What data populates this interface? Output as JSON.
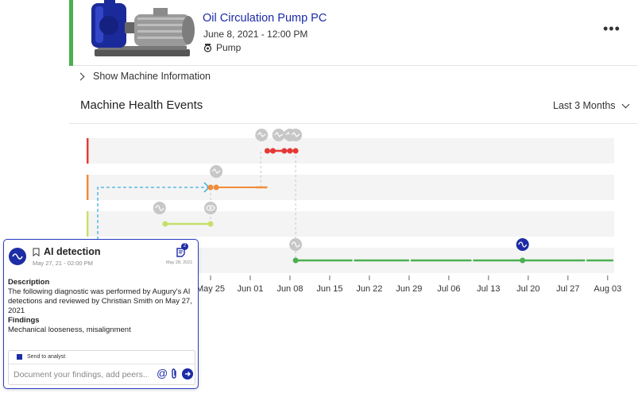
{
  "header": {
    "title": "Oil Circulation Pump PC",
    "date": "June 8, 2021 - 12:00 PM",
    "machine_type": "Pump",
    "type_icon": "pump-icon",
    "more_icon": "more-horizontal-icon",
    "accent_color": "#4caf50"
  },
  "show_info_label": "Show Machine Information",
  "section": {
    "title": "Machine Health Events",
    "range_label": "Last 3 Months"
  },
  "colors": {
    "critical": "#e53935",
    "high": "#f08c3a",
    "medium": "#c6e06b",
    "normal": "#4caf50",
    "dotted_link": "#3aaee0",
    "brand": "#1d2da5"
  },
  "chart_data": {
    "type": "timeline",
    "x_ticks": [
      "May 25",
      "Jun 01",
      "Jun 08",
      "Jun 15",
      "Jun 22",
      "Jun 29",
      "Jul 06",
      "Jul 13",
      "Jul 20",
      "Jul 27",
      "Aug 03"
    ],
    "lanes": [
      "critical",
      "high",
      "medium",
      "normal"
    ],
    "segments": [
      {
        "lane": "critical",
        "start": "Jun 04",
        "end": "Jun 09"
      },
      {
        "lane": "high",
        "start": "Jun 02",
        "end": "Jun 03"
      },
      {
        "lane": "high",
        "start": "Jun 03",
        "end": "Jun 04"
      },
      {
        "lane": "medium",
        "start": "May 17",
        "end": "May 25"
      },
      {
        "lane": "normal",
        "start": "Jun 09",
        "end": "Aug 04"
      }
    ],
    "dots": [
      {
        "lane": "critical",
        "x": "Jun 04"
      },
      {
        "lane": "critical",
        "x": "Jun 05"
      },
      {
        "lane": "critical",
        "x": "Jun 07"
      },
      {
        "lane": "critical",
        "x": "Jun 08"
      },
      {
        "lane": "critical",
        "x": "Jun 09"
      },
      {
        "lane": "high",
        "x": "May 25"
      },
      {
        "lane": "high",
        "x": "May 26"
      },
      {
        "lane": "medium",
        "x": "May 17"
      },
      {
        "lane": "medium",
        "x": "May 25"
      },
      {
        "lane": "normal",
        "x": "Jun 09"
      },
      {
        "lane": "normal",
        "x": "Jul 19"
      }
    ],
    "event_icons": [
      {
        "lane": "critical",
        "x": "Jun 03",
        "icon": "diagnostic-icon"
      },
      {
        "lane": "critical",
        "x": "Jun 06",
        "icon": "diagnostic-icon"
      },
      {
        "lane": "critical",
        "x": "Jun 08",
        "icon": "diagnostic-icon"
      },
      {
        "lane": "critical",
        "x": "Jun 09",
        "icon": "diagnostic-icon"
      },
      {
        "lane": "high",
        "x": "May 26",
        "icon": "diagnostic-icon"
      },
      {
        "lane": "medium",
        "x": "May 16",
        "icon": "wave-icon"
      },
      {
        "lane": "medium",
        "x": "May 25",
        "icon": "eye-icon"
      },
      {
        "lane": "normal",
        "x": "Jun 09",
        "icon": "wave-icon"
      },
      {
        "lane": "normal",
        "x": "Jul 19",
        "icon": "wave-icon-selected"
      }
    ],
    "grid": false,
    "legend": "none"
  },
  "popup": {
    "title": "AI detection",
    "date": "May 27, 21 - 02:00 PM",
    "notes_count": "2",
    "notes_date": "May 28, 2021",
    "description_label": "Description",
    "description_text": "The following diagnostic was performed by Augury's AI detections and reviewed by Christian Smith on May 27, 2021",
    "findings_label": "Findings",
    "findings_text": "Mechanical looseness, misalignment",
    "send_to_analyst": "Send to analyst",
    "input_placeholder": "Document your findings, add peers..."
  }
}
